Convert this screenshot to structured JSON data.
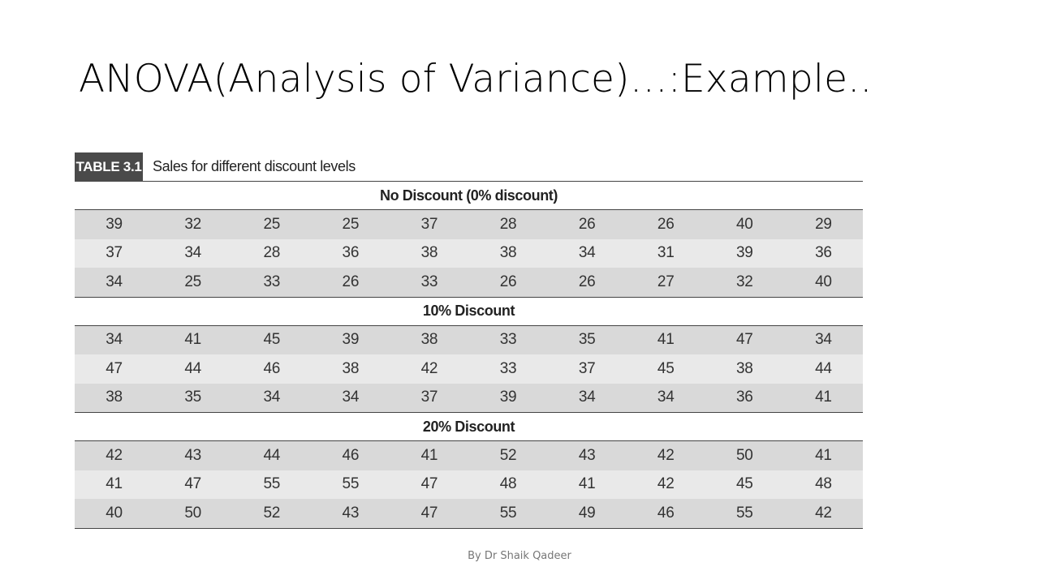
{
  "slide": {
    "title": "ANOVA(Analysis of Variance)…:Example..",
    "footer": "By Dr Shaik Qadeer"
  },
  "table": {
    "tag": "TABLE 3.1",
    "caption": "Sales for different discount levels",
    "sections": [
      {
        "label": "No Discount (0% discount)",
        "rows": [
          [
            "39",
            "32",
            "25",
            "25",
            "37",
            "28",
            "26",
            "26",
            "40",
            "29"
          ],
          [
            "37",
            "34",
            "28",
            "36",
            "38",
            "38",
            "34",
            "31",
            "39",
            "36"
          ],
          [
            "34",
            "25",
            "33",
            "26",
            "33",
            "26",
            "26",
            "27",
            "32",
            "40"
          ]
        ]
      },
      {
        "label": "10% Discount",
        "rows": [
          [
            "34",
            "41",
            "45",
            "39",
            "38",
            "33",
            "35",
            "41",
            "47",
            "34"
          ],
          [
            "47",
            "44",
            "46",
            "38",
            "42",
            "33",
            "37",
            "45",
            "38",
            "44"
          ],
          [
            "38",
            "35",
            "34",
            "34",
            "37",
            "39",
            "34",
            "34",
            "36",
            "41"
          ]
        ]
      },
      {
        "label": "20% Discount",
        "rows": [
          [
            "42",
            "43",
            "44",
            "46",
            "41",
            "52",
            "43",
            "42",
            "50",
            "41"
          ],
          [
            "41",
            "47",
            "55",
            "55",
            "47",
            "48",
            "41",
            "42",
            "45",
            "48"
          ],
          [
            "40",
            "50",
            "52",
            "43",
            "47",
            "55",
            "49",
            "46",
            "55",
            "42"
          ]
        ]
      }
    ]
  }
}
